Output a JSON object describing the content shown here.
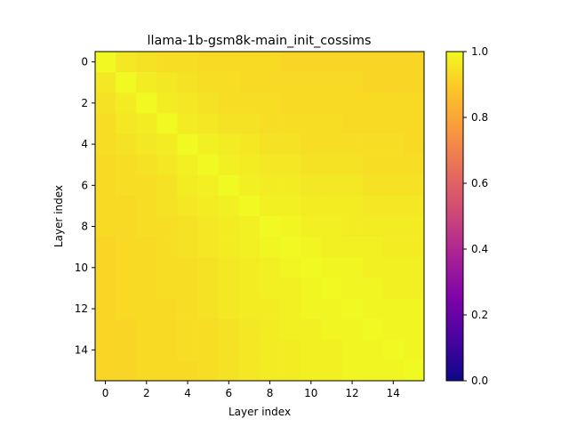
{
  "chart_data": {
    "type": "heatmap",
    "title": "llama-1b-gsm8k-main_init_cossims",
    "xlabel": "Layer index",
    "ylabel": "Layer index",
    "x_ticks": [
      "0",
      "2",
      "4",
      "6",
      "8",
      "10",
      "12",
      "14"
    ],
    "y_ticks": [
      "0",
      "2",
      "4",
      "6",
      "8",
      "10",
      "12",
      "14"
    ],
    "n_rows": 16,
    "n_cols": 16,
    "colormap": "plasma",
    "vmin": 0.0,
    "vmax": 1.0,
    "colorbar_ticks": [
      "0.0",
      "0.2",
      "0.4",
      "0.6",
      "0.8",
      "1.0"
    ],
    "colorbar_values": [
      0.0,
      0.2,
      0.4,
      0.6,
      0.8,
      1.0
    ],
    "values": [
      [
        1.0,
        0.96,
        0.95,
        0.94,
        0.94,
        0.93,
        0.93,
        0.93,
        0.93,
        0.92,
        0.92,
        0.92,
        0.92,
        0.92,
        0.92,
        0.92
      ],
      [
        0.96,
        1.0,
        0.97,
        0.96,
        0.95,
        0.94,
        0.94,
        0.93,
        0.93,
        0.93,
        0.93,
        0.93,
        0.93,
        0.92,
        0.92,
        0.92
      ],
      [
        0.95,
        0.97,
        1.0,
        0.97,
        0.96,
        0.95,
        0.94,
        0.94,
        0.94,
        0.93,
        0.93,
        0.93,
        0.93,
        0.93,
        0.93,
        0.93
      ],
      [
        0.94,
        0.96,
        0.97,
        1.0,
        0.97,
        0.96,
        0.95,
        0.95,
        0.94,
        0.94,
        0.94,
        0.94,
        0.93,
        0.93,
        0.93,
        0.93
      ],
      [
        0.94,
        0.95,
        0.96,
        0.97,
        1.0,
        0.98,
        0.97,
        0.96,
        0.95,
        0.95,
        0.94,
        0.94,
        0.94,
        0.94,
        0.94,
        0.93
      ],
      [
        0.93,
        0.94,
        0.95,
        0.96,
        0.98,
        1.0,
        0.98,
        0.97,
        0.96,
        0.96,
        0.95,
        0.95,
        0.95,
        0.94,
        0.94,
        0.94
      ],
      [
        0.93,
        0.94,
        0.94,
        0.95,
        0.97,
        0.98,
        1.0,
        0.98,
        0.97,
        0.97,
        0.96,
        0.96,
        0.96,
        0.95,
        0.95,
        0.95
      ],
      [
        0.93,
        0.93,
        0.94,
        0.95,
        0.96,
        0.97,
        0.98,
        1.0,
        0.98,
        0.98,
        0.97,
        0.97,
        0.97,
        0.96,
        0.96,
        0.96
      ],
      [
        0.93,
        0.93,
        0.94,
        0.94,
        0.95,
        0.96,
        0.97,
        0.98,
        1.0,
        0.99,
        0.98,
        0.98,
        0.97,
        0.97,
        0.97,
        0.97
      ],
      [
        0.92,
        0.93,
        0.93,
        0.94,
        0.95,
        0.96,
        0.97,
        0.98,
        0.99,
        1.0,
        0.99,
        0.98,
        0.98,
        0.98,
        0.97,
        0.97
      ],
      [
        0.92,
        0.93,
        0.93,
        0.94,
        0.94,
        0.95,
        0.96,
        0.97,
        0.98,
        0.99,
        1.0,
        0.99,
        0.99,
        0.98,
        0.98,
        0.98
      ],
      [
        0.92,
        0.93,
        0.93,
        0.94,
        0.94,
        0.95,
        0.96,
        0.97,
        0.98,
        0.98,
        0.99,
        1.0,
        0.99,
        0.99,
        0.98,
        0.98
      ],
      [
        0.92,
        0.93,
        0.93,
        0.93,
        0.94,
        0.95,
        0.96,
        0.97,
        0.97,
        0.98,
        0.99,
        0.99,
        1.0,
        0.99,
        0.99,
        0.99
      ],
      [
        0.92,
        0.92,
        0.93,
        0.93,
        0.94,
        0.94,
        0.95,
        0.96,
        0.97,
        0.98,
        0.98,
        0.99,
        0.99,
        1.0,
        0.99,
        0.99
      ],
      [
        0.92,
        0.92,
        0.93,
        0.93,
        0.94,
        0.94,
        0.95,
        0.96,
        0.97,
        0.97,
        0.98,
        0.98,
        0.99,
        0.99,
        1.0,
        0.99
      ],
      [
        0.92,
        0.92,
        0.93,
        0.93,
        0.93,
        0.94,
        0.95,
        0.96,
        0.97,
        0.97,
        0.98,
        0.98,
        0.99,
        0.99,
        0.99,
        1.0
      ]
    ]
  }
}
